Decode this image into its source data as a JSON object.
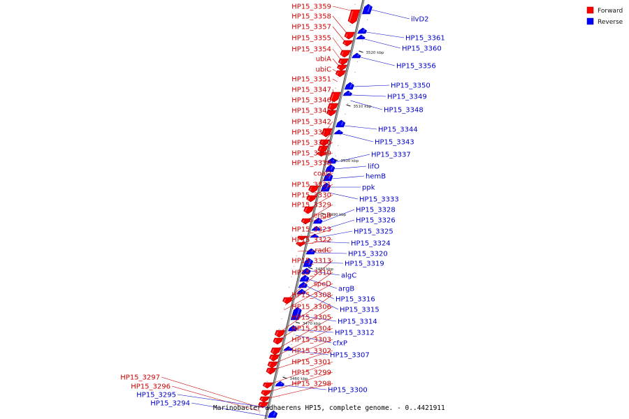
{
  "caption": "Marinobacter adhaerens HP15, complete genome. - 0..4421911",
  "legend": [
    {
      "label": "Forward",
      "color": "#ff0000"
    },
    {
      "label": "Reverse",
      "color": "#0000ff"
    }
  ],
  "colors": {
    "forward": "#ff0000",
    "reverse": "#0000ff",
    "forward_text": "#cc0000",
    "reverse_text": "#0000cc",
    "axis": "#808080"
  },
  "kbp_ticks": [
    "3520 kbp",
    "3510 kbp",
    "3500 kbp",
    "3490 kbp",
    "3480 kbp",
    "3470 kbp",
    "3460 kbp"
  ],
  "forward_genes": [
    "HP15_3359",
    "HP15_3358",
    "HP15_3357",
    "HP15_3355",
    "HP15_3354",
    "ubiA",
    "ubiC",
    "HP15_3351",
    "HP15_3347",
    "HP15_3346",
    "HP15_3345",
    "HP15_3342",
    "HP15_3341",
    "HP15_3340",
    "HP15_3339",
    "HP15_3338",
    "coaD",
    "HP15_3331",
    "HP15_3330",
    "HP15_3329",
    "engB",
    "HP15_3323",
    "HP15_3322",
    "radC",
    "HP15_3313",
    "HP15_3310",
    "speD",
    "HP15_3308",
    "HP15_3306",
    "HP15_3305",
    "HP15_3304",
    "HP15_3303",
    "HP15_3302",
    "HP15_3301",
    "HP15_3299",
    "HP15_3298",
    "HP15_3297",
    "HP15_3296"
  ],
  "reverse_genes_left": [
    "HP15_3295",
    "HP15_3294"
  ],
  "reverse_genes": [
    "ilvD2",
    "HP15_3361",
    "HP15_3360",
    "HP15_3356",
    "HP15_3350",
    "HP15_3349",
    "HP15_3348",
    "HP15_3344",
    "HP15_3343",
    "HP15_3337",
    "lifO",
    "hemB",
    "ppk",
    "HP15_3333",
    "HP15_3328",
    "HP15_3326",
    "HP15_3325",
    "HP15_3324",
    "HP15_3320",
    "HP15_3319",
    "algC",
    "argB",
    "HP15_3316",
    "HP15_3315",
    "HP15_3314",
    "HP15_3312",
    "cfxP",
    "HP15_3307",
    "HP15_3300"
  ]
}
